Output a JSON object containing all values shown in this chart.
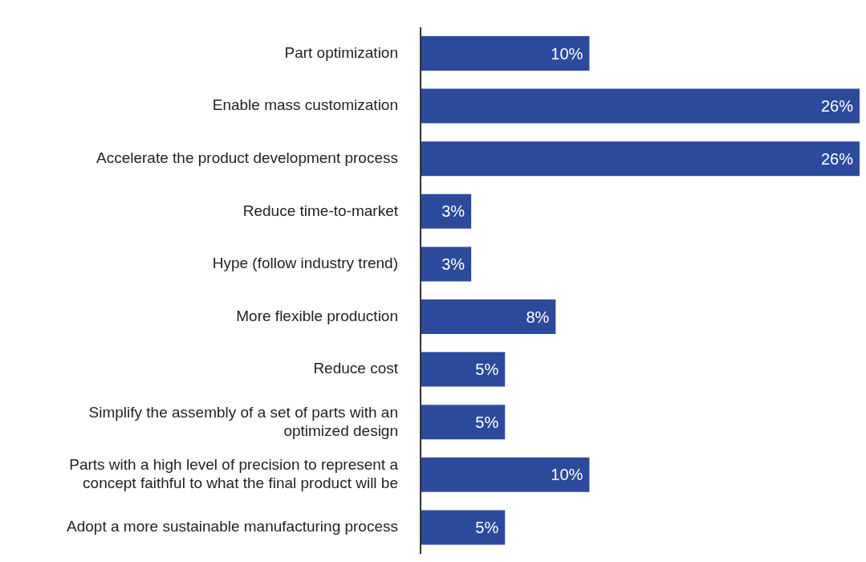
{
  "chart_data": {
    "type": "bar",
    "orientation": "horizontal",
    "categories": [
      "Part optimization",
      "Enable mass customization",
      "Accelerate the product development process",
      "Reduce time-to-market",
      "Hype (follow industry trend)",
      "More flexible production",
      "Reduce cost",
      "Simplify the assembly of a set of parts with an optimized design",
      "Parts with a high level of precision to represent a concept faithful to what the final product will be",
      "Adopt a more sustainable manufacturing process"
    ],
    "values": [
      10,
      26,
      26,
      3,
      3,
      8,
      5,
      5,
      10,
      5
    ],
    "color": "#2b4a9c",
    "value_labels": [
      "10%",
      "26%",
      "26%",
      "3%",
      "3%",
      "8%",
      "5%",
      "5%",
      "10%",
      "5%"
    ]
  }
}
